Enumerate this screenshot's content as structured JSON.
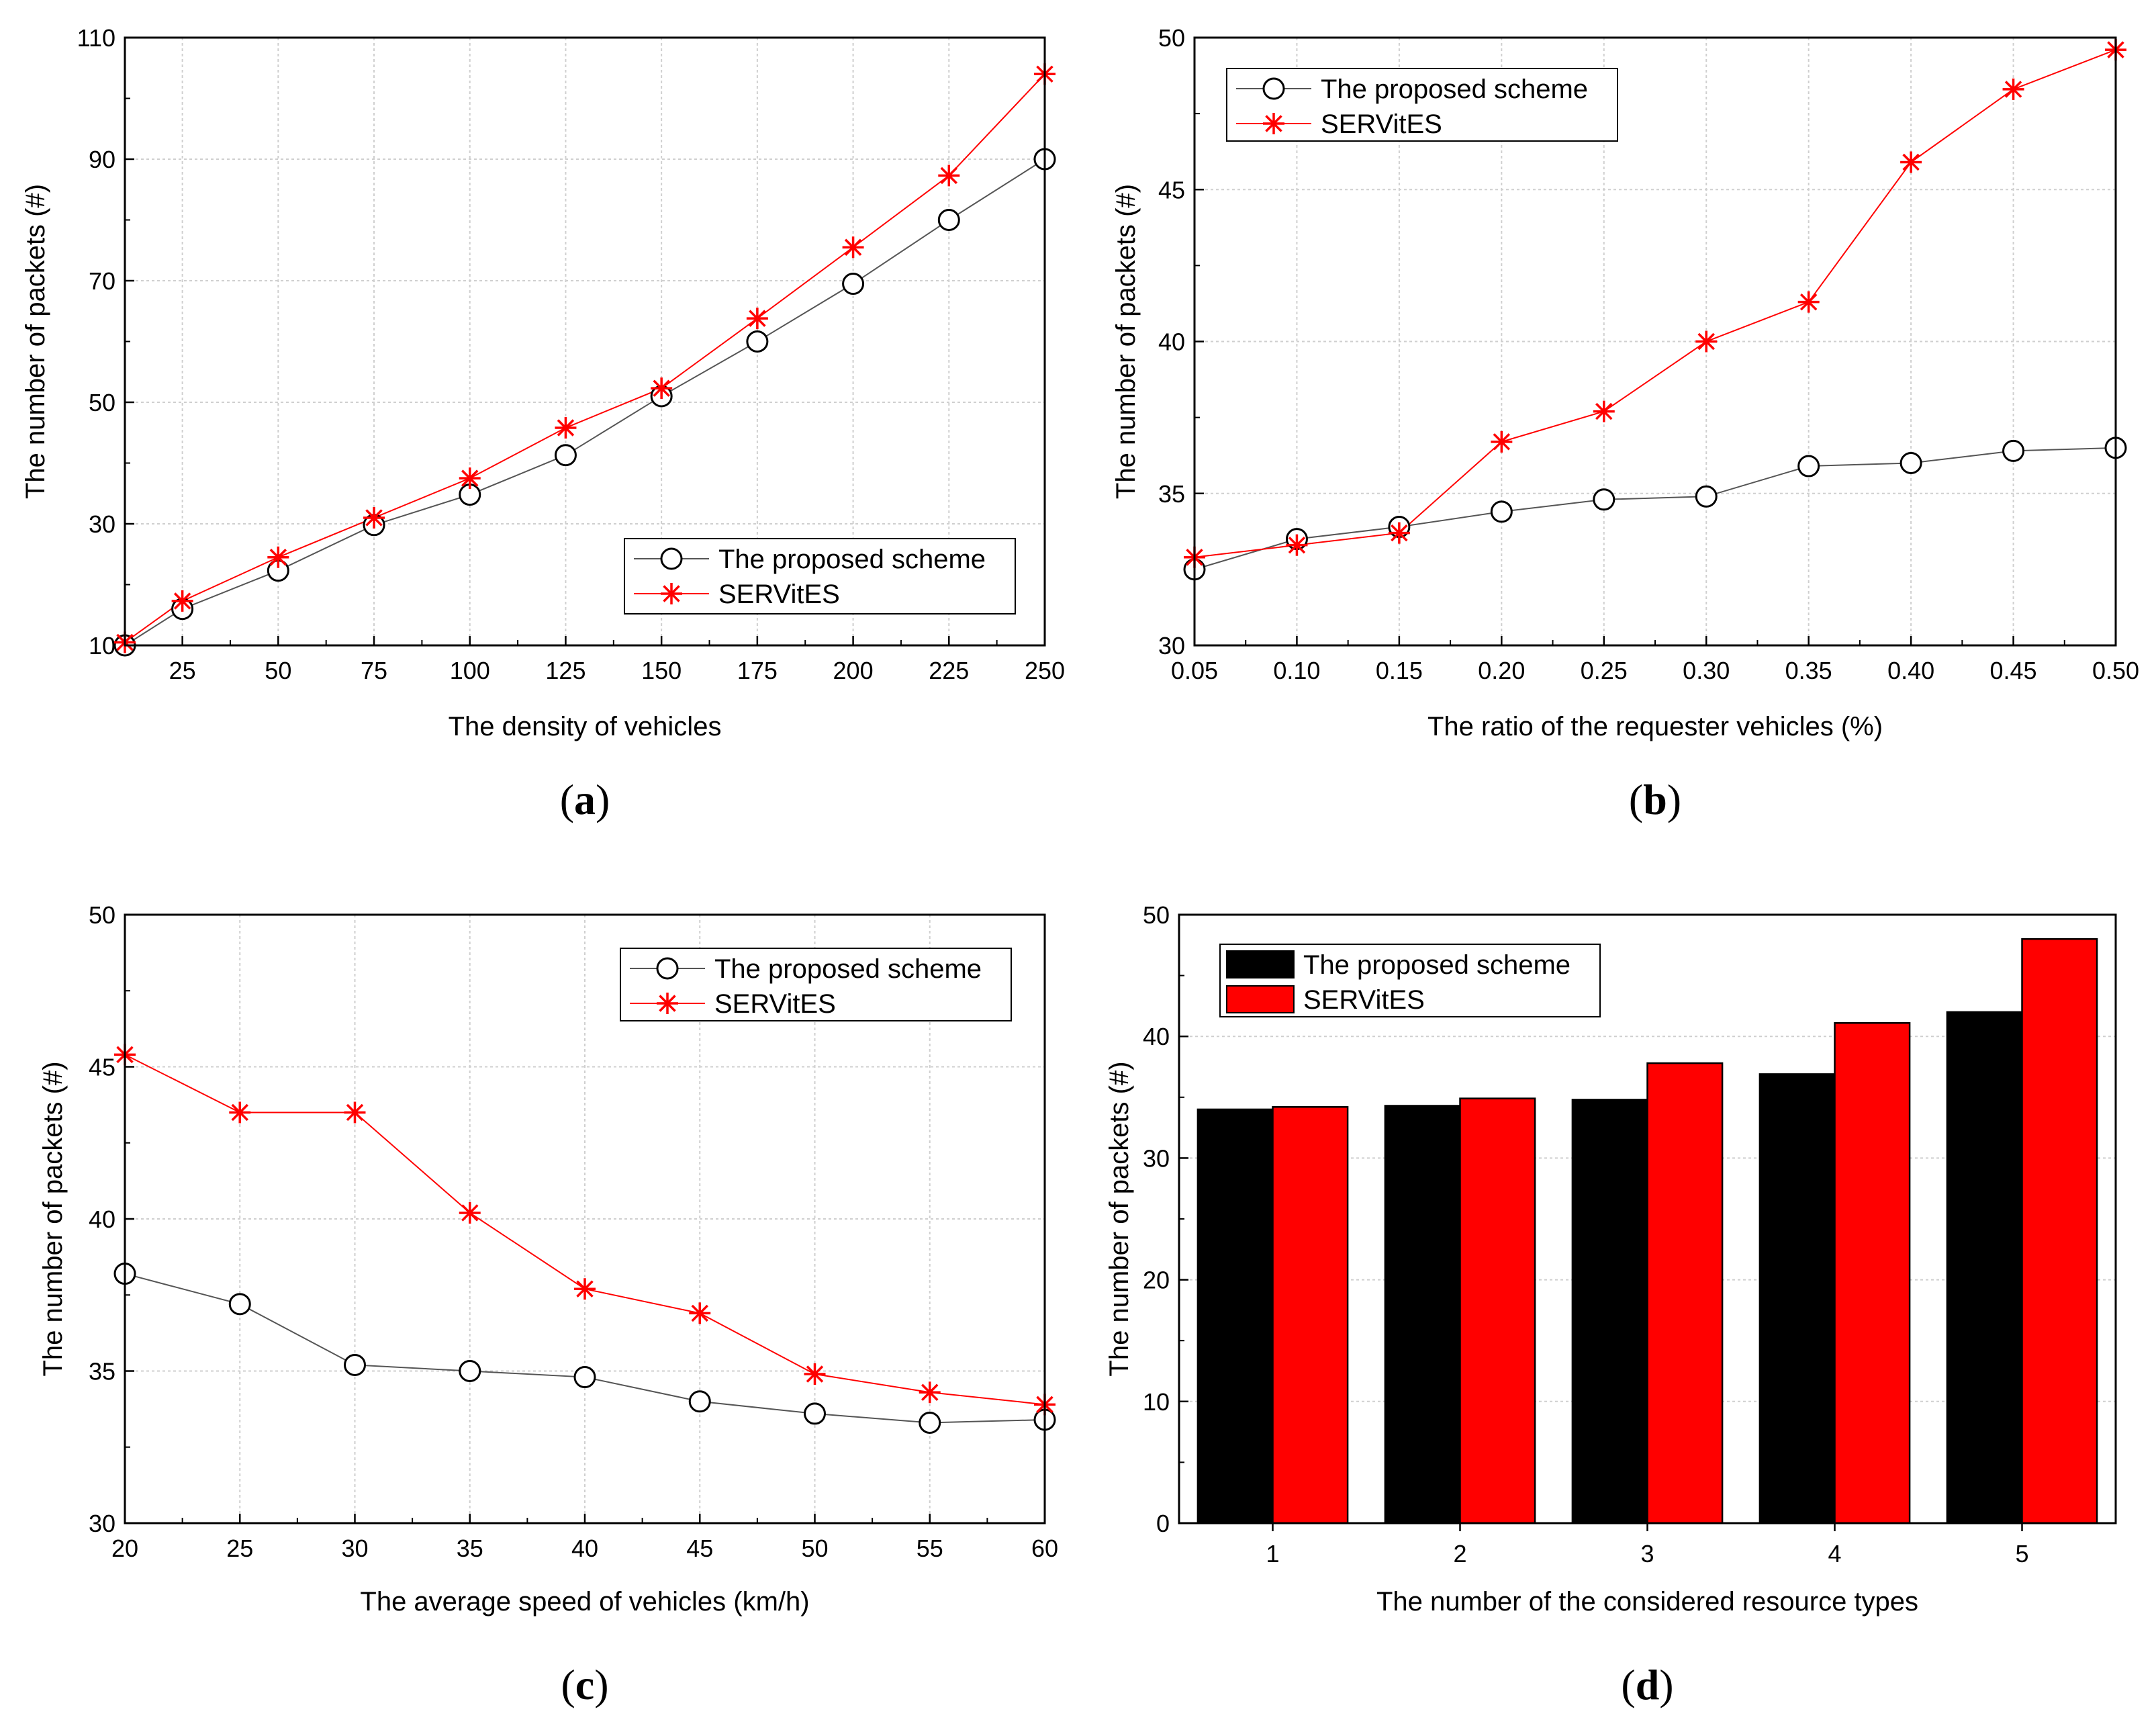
{
  "colors": {
    "proposed": "#000000",
    "servites": "#ff0000",
    "proposed_line": "#555555",
    "grid": "#cfcfcf"
  },
  "chart_data": [
    {
      "id": "a",
      "type": "line",
      "caption": "a",
      "xlabel": "The density of vehicles",
      "ylabel": "The number of packets (#)",
      "xlim": [
        10,
        250
      ],
      "ylim": [
        10,
        110
      ],
      "xticks": [
        "25",
        "50",
        "75",
        "100",
        "125",
        "150",
        "175",
        "200",
        "225",
        "250"
      ],
      "yticks": [
        "10",
        "30",
        "50",
        "70",
        "90",
        "110"
      ],
      "legend_position": "bottom-right",
      "x": [
        10,
        25,
        50,
        75,
        100,
        125,
        150,
        175,
        200,
        225,
        250
      ],
      "series": [
        {
          "name": "The proposed scheme",
          "marker": "circle",
          "values": [
            10,
            16,
            22.3,
            29.8,
            34.8,
            41.3,
            51,
            60,
            69.5,
            80,
            90
          ]
        },
        {
          "name": "SERVitES",
          "marker": "asterisk",
          "values": [
            10.5,
            17.3,
            24.5,
            31,
            37.5,
            45.8,
            52.3,
            63.8,
            75.5,
            87.3,
            104
          ]
        }
      ]
    },
    {
      "id": "b",
      "type": "line",
      "caption": "b",
      "xlabel": "The ratio of the requester vehicles (%)",
      "ylabel": "The number of packets (#)",
      "xlim": [
        0.05,
        0.5
      ],
      "ylim": [
        30,
        50
      ],
      "xticks": [
        "0.05",
        "0.10",
        "0.15",
        "0.20",
        "0.25",
        "0.30",
        "0.35",
        "0.40",
        "0.45",
        "0.50"
      ],
      "yticks": [
        "30",
        "35",
        "40",
        "45",
        "50"
      ],
      "legend_position": "top-left",
      "x": [
        0.05,
        0.1,
        0.15,
        0.2,
        0.25,
        0.3,
        0.35,
        0.4,
        0.45,
        0.5
      ],
      "series": [
        {
          "name": "The proposed scheme",
          "marker": "circle",
          "values": [
            32.5,
            33.5,
            33.9,
            34.4,
            34.8,
            34.9,
            35.9,
            36.0,
            36.4,
            36.5
          ]
        },
        {
          "name": "SERVitES",
          "marker": "asterisk",
          "values": [
            32.9,
            33.3,
            33.7,
            36.7,
            37.7,
            40.0,
            41.3,
            45.9,
            48.3,
            49.6
          ]
        }
      ]
    },
    {
      "id": "c",
      "type": "line",
      "caption": "c",
      "xlabel": "The average speed of vehicles (km/h)",
      "ylabel": "The number of packets (#)",
      "xlim": [
        20,
        60
      ],
      "ylim": [
        30,
        50
      ],
      "xticks": [
        "20",
        "25",
        "30",
        "35",
        "40",
        "45",
        "50",
        "55",
        "60"
      ],
      "yticks": [
        "30",
        "35",
        "40",
        "45",
        "50"
      ],
      "legend_position": "top-right",
      "x": [
        20,
        25,
        30,
        35,
        40,
        45,
        50,
        55,
        60
      ],
      "series": [
        {
          "name": "The proposed scheme",
          "marker": "circle",
          "values": [
            38.2,
            37.2,
            35.2,
            35.0,
            34.8,
            34.0,
            33.6,
            33.3,
            33.4
          ]
        },
        {
          "name": "SERVitES",
          "marker": "asterisk",
          "values": [
            45.4,
            43.5,
            43.5,
            40.2,
            37.7,
            36.9,
            34.9,
            34.3,
            33.9
          ]
        }
      ]
    },
    {
      "id": "d",
      "type": "bar",
      "caption": "d",
      "xlabel": "The number of the considered resource types",
      "ylabel": "The number of packets (#)",
      "ylim": [
        0,
        50
      ],
      "categories": [
        "1",
        "2",
        "3",
        "4",
        "5"
      ],
      "yticks": [
        "0",
        "10",
        "20",
        "30",
        "40",
        "50"
      ],
      "legend_position": "top-left",
      "series": [
        {
          "name": "The proposed scheme",
          "values": [
            34.0,
            34.3,
            34.8,
            36.9,
            42.0
          ]
        },
        {
          "name": "SERVitES",
          "values": [
            34.2,
            34.9,
            37.8,
            41.1,
            48.0
          ]
        }
      ]
    }
  ]
}
